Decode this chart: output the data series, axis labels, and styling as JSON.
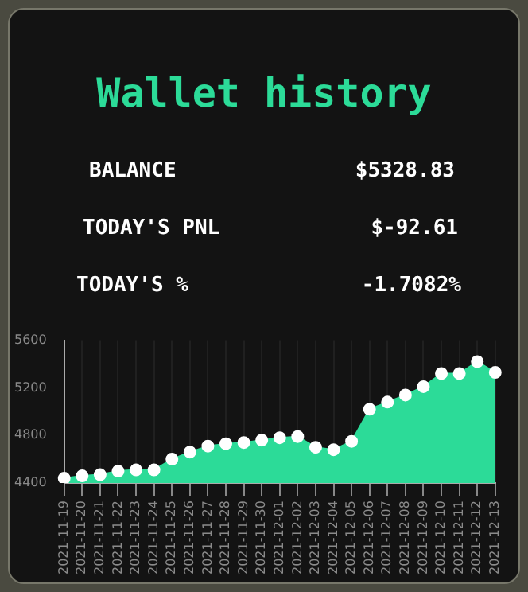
{
  "chart_data": {
    "type": "area",
    "title": "Wallet history",
    "annotations": [
      "BALANCE",
      "$5328.83",
      "TODAY'S PNL",
      "$-92.61",
      "TODAY'S %",
      "-1.7082%"
    ],
    "categories": [
      "2021-11-19",
      "2021-11-20",
      "2021-11-21",
      "2021-11-22",
      "2021-11-23",
      "2021-11-24",
      "2021-11-25",
      "2021-11-26",
      "2021-11-27",
      "2021-11-28",
      "2021-11-29",
      "2021-11-30",
      "2021-12-01",
      "2021-12-02",
      "2021-12-03",
      "2021-12-04",
      "2021-12-05",
      "2021-12-06",
      "2021-12-07",
      "2021-12-08",
      "2021-12-09",
      "2021-12-10",
      "2021-12-11",
      "2021-12-12",
      "2021-12-13"
    ],
    "series": [
      {
        "color": "#2cdb98",
        "values": [
          4440,
          4460,
          4470,
          4500,
          4510,
          4510,
          4600,
          4660,
          4710,
          4730,
          4740,
          4760,
          4780,
          4790,
          4700,
          4680,
          4750,
          5020,
          5080,
          5140,
          5210,
          5320,
          5320,
          5420,
          5329
        ]
      }
    ],
    "ylim": [
      4400,
      5600
    ],
    "yticks": [
      4400,
      4800,
      5200,
      5600
    ],
    "grid": "x",
    "marker": "circle",
    "legend": false
  }
}
